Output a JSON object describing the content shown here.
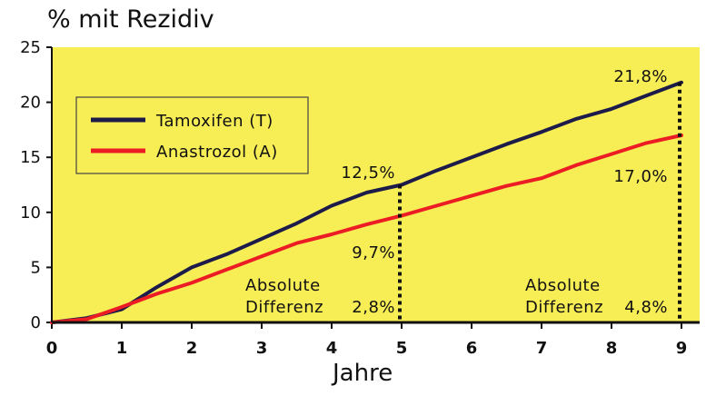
{
  "chart_data": {
    "type": "line",
    "ylabel": "% mit Rezidiv",
    "xlabel": "Jahre",
    "xlim": [
      0,
      9
    ],
    "ylim": [
      0,
      25
    ],
    "x_ticks": [
      "0",
      "1",
      "2",
      "3",
      "4",
      "5",
      "6",
      "7",
      "8",
      "9"
    ],
    "y_ticks": [
      "0",
      "5",
      "10",
      "15",
      "20",
      "25"
    ],
    "background_color": "#f7ed55",
    "series": [
      {
        "name": "Tamoxifen (T)",
        "color": "#1c1b4a",
        "x": [
          0,
          0.5,
          1,
          1.5,
          2,
          2.5,
          3,
          3.5,
          4,
          4.5,
          5,
          5.5,
          6,
          6.5,
          7,
          7.5,
          8,
          8.5,
          9
        ],
        "y": [
          0,
          0.4,
          1.2,
          3.2,
          5.0,
          6.2,
          7.6,
          9.0,
          10.6,
          11.8,
          12.5,
          13.8,
          15.0,
          16.2,
          17.3,
          18.5,
          19.4,
          20.6,
          21.8
        ]
      },
      {
        "name": "Anastrozol (A)",
        "color": "#ec1c24",
        "x": [
          0,
          0.5,
          1,
          1.5,
          2,
          2.5,
          3,
          3.5,
          4,
          4.5,
          5,
          5.5,
          6,
          6.5,
          7,
          7.5,
          8,
          8.5,
          9
        ],
        "y": [
          0,
          0.3,
          1.4,
          2.6,
          3.6,
          4.8,
          6.0,
          7.2,
          8.0,
          8.9,
          9.7,
          10.6,
          11.5,
          12.4,
          13.1,
          14.3,
          15.3,
          16.3,
          17.0
        ]
      }
    ],
    "annotations": [
      {
        "text": "12,5%",
        "x": 5,
        "y": 12.5
      },
      {
        "text": "9,7%",
        "x": 5,
        "y": 9.7
      },
      {
        "text": "Absolute",
        "x": 5,
        "y": 3.8
      },
      {
        "text": "Differenz",
        "x": 5,
        "y": 1.8
      },
      {
        "text": "2,8%",
        "x": 5,
        "y": 1.8
      },
      {
        "text": "21,8%",
        "x": 9,
        "y": 21.8
      },
      {
        "text": "17,0%",
        "x": 9,
        "y": 17.0
      },
      {
        "text": "Absolute",
        "x": 9,
        "y": 3.8
      },
      {
        "text": "Differenz",
        "x": 9,
        "y": 1.8
      },
      {
        "text": "4,8%",
        "x": 9,
        "y": 1.8
      }
    ],
    "legend_position": "top-left"
  }
}
